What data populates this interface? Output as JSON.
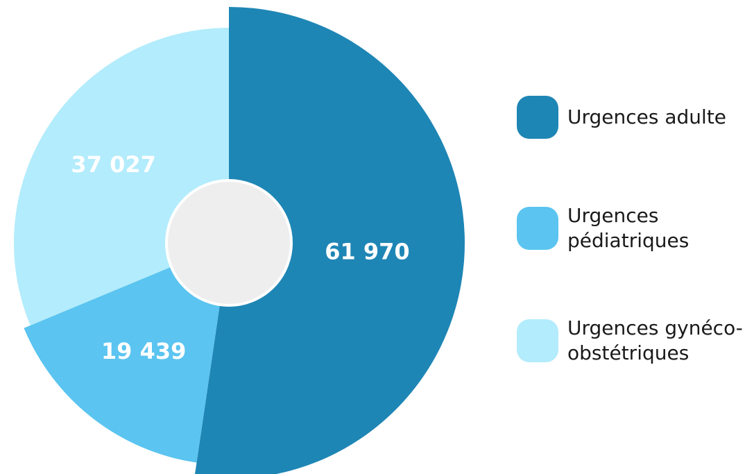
{
  "chart_data": {
    "type": "pie",
    "categories": [
      "Urgences adulte",
      "Urgences pédiatriques",
      "Urgences gynéco-obstétriques"
    ],
    "values": [
      61970,
      19439,
      37027
    ],
    "value_labels": [
      "61 970",
      "19 439",
      "37 027"
    ],
    "colors": [
      "#1e86b5",
      "#5bc4f0",
      "#b3ecfc"
    ],
    "legend": "right"
  }
}
